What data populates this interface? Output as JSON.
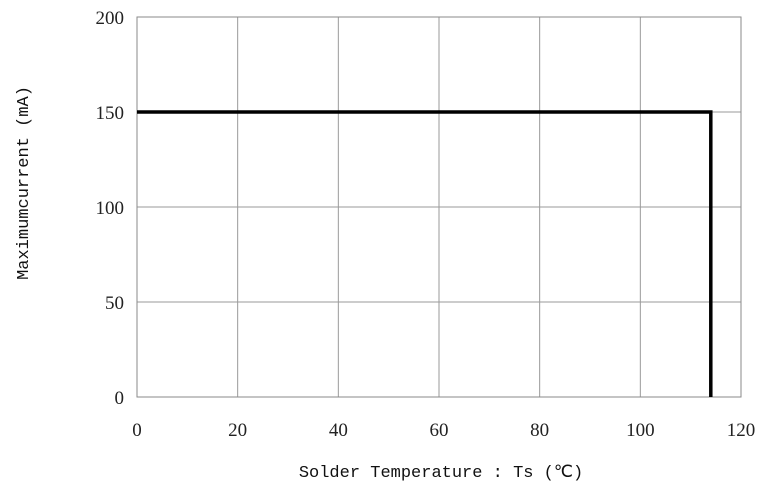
{
  "chart_data": {
    "type": "line",
    "title": "",
    "xlabel": "Solder Temperature : Ts  (℃)",
    "ylabel": "Maximumcurrent   (mA)",
    "xlim": [
      0,
      120
    ],
    "ylim": [
      0,
      200
    ],
    "x_ticks": [
      0,
      20,
      40,
      60,
      80,
      100,
      120
    ],
    "y_ticks": [
      0,
      50,
      100,
      150,
      200
    ],
    "grid": true,
    "legend": "none",
    "series": [
      {
        "color": "#000000",
        "x": [
          0,
          114,
          114
        ],
        "y": [
          150,
          150,
          0
        ]
      }
    ]
  }
}
